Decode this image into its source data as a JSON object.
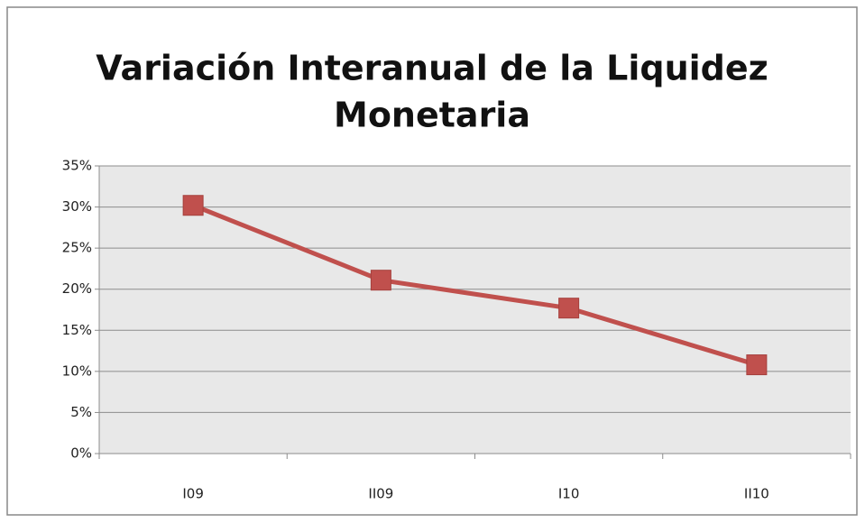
{
  "chart_data": {
    "type": "line",
    "title": [
      "Variación Interanual de la Liquidez",
      "Monetaria"
    ],
    "categories": [
      "I09",
      "II09",
      "I10",
      "II10"
    ],
    "series": [
      {
        "name": "Liquidez Monetaria",
        "color": "#c0504d",
        "values": [
          30.2,
          21.1,
          17.7,
          10.8
        ]
      }
    ],
    "ylim": [
      0,
      35
    ],
    "yticks": [
      {
        "value": 0,
        "label": "0%"
      },
      {
        "value": 5,
        "label": "5%"
      },
      {
        "value": 10,
        "label": "10%"
      },
      {
        "value": 15,
        "label": "15%"
      },
      {
        "value": 20,
        "label": "20%"
      },
      {
        "value": 25,
        "label": "25%"
      },
      {
        "value": 30,
        "label": "30%"
      },
      {
        "value": 35,
        "label": "35%"
      }
    ],
    "grid": true
  }
}
